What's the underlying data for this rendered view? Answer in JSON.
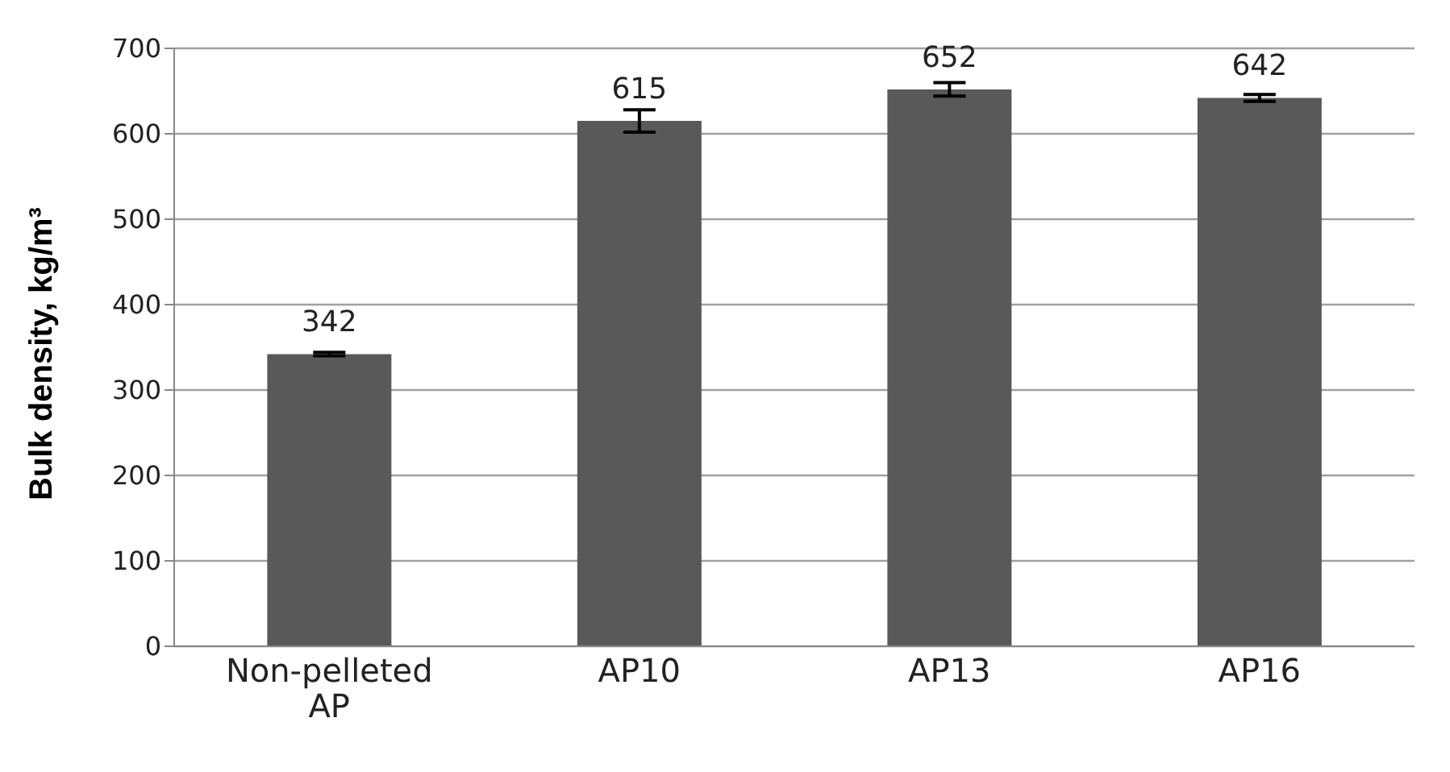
{
  "chart_data": {
    "type": "bar",
    "ylabel": "Bulk density, kg/m³",
    "categories": [
      "Non-pelleted AP",
      "AP10",
      "AP13",
      "AP16"
    ],
    "values": [
      342,
      615,
      652,
      642
    ],
    "errors": [
      2,
      13,
      8,
      4
    ],
    "color": "#595959",
    "data_labels": true,
    "grid": "y",
    "ylim": [
      0,
      700
    ],
    "yticks": [
      0,
      100,
      200,
      300,
      400,
      500,
      600,
      700
    ]
  }
}
